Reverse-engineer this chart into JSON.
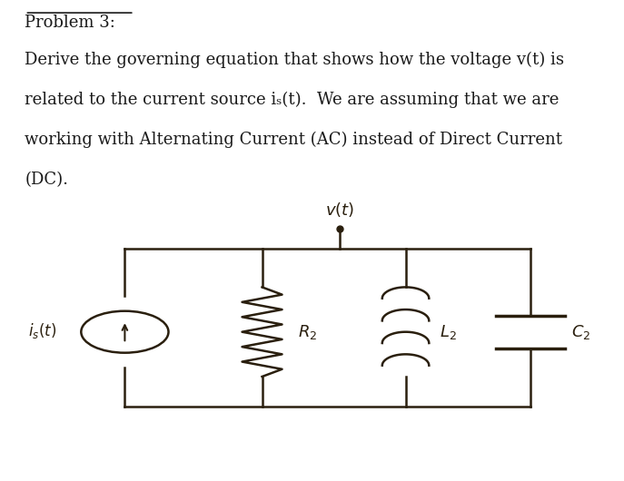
{
  "bg_color": "#ffffff",
  "circuit_bg": "#b8a882",
  "text_color": "#1a1a1a",
  "title": "Problem 3:",
  "body_lines": [
    "Derive the governing equation that shows how the voltage v(t) is",
    "related to the current source iₛ(t).  We are assuming that we are",
    "working with Alternating Current (AC) instead of Direct Current",
    "(DC)."
  ],
  "line_color": "#2a1f0e",
  "font_size_title": 13,
  "font_size_body": 13,
  "font_size_labels": 12
}
